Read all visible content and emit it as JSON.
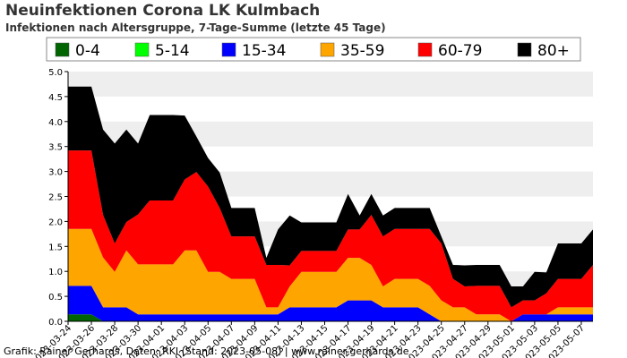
{
  "chart_data": {
    "type": "area",
    "stacked": true,
    "title": "Neuinfektionen Corona LK Kulmbach",
    "subtitle": "Infektionen nach Altersgruppe, 7-Tage-Summe (letzte 45 Tage)",
    "xlabel": "",
    "ylabel": "",
    "ylim": [
      0,
      5
    ],
    "yticks": [
      "0.0",
      "0.5",
      "1.0",
      "1.5",
      "2.0",
      "2.5",
      "3.0",
      "3.5",
      "4.0",
      "4.5",
      "5.0"
    ],
    "legend_position": "top",
    "grid": "horizontal bands",
    "x": [
      "2023-03-24",
      "2023-03-25",
      "2023-03-26",
      "2023-03-27",
      "2023-03-28",
      "2023-03-29",
      "2023-03-30",
      "2023-03-31",
      "2023-04-01",
      "2023-04-02",
      "2023-04-03",
      "2023-04-04",
      "2023-04-05",
      "2023-04-06",
      "2023-04-07",
      "2023-04-08",
      "2023-04-09",
      "2023-04-10",
      "2023-04-11",
      "2023-04-12",
      "2023-04-13",
      "2023-04-14",
      "2023-04-15",
      "2023-04-16",
      "2023-04-17",
      "2023-04-18",
      "2023-04-19",
      "2023-04-20",
      "2023-04-21",
      "2023-04-22",
      "2023-04-23",
      "2023-04-24",
      "2023-04-25",
      "2023-04-26",
      "2023-04-27",
      "2023-04-28",
      "2023-04-29",
      "2023-04-30",
      "2023-05-01",
      "2023-05-02",
      "2023-05-03",
      "2023-05-04",
      "2023-05-05",
      "2023-05-06",
      "2023-05-07",
      "2023-05-08"
    ],
    "xtick_labels": [
      "2023-03-24",
      "2023-03-26",
      "2023-03-28",
      "2023-03-30",
      "2023-04-01",
      "2023-04-03",
      "2023-04-05",
      "2023-04-07",
      "2023-04-09",
      "2023-04-11",
      "2023-04-13",
      "2023-04-15",
      "2023-04-17",
      "2023-04-19",
      "2023-04-21",
      "2023-04-23",
      "2023-04-25",
      "2023-04-27",
      "2023-04-29",
      "2023-05-01",
      "2023-05-03",
      "2023-05-05",
      "2023-05-07"
    ],
    "series": [
      {
        "name": "0-4",
        "color": "#006400",
        "values": [
          0.14,
          0.14,
          0.14,
          0,
          0,
          0,
          0,
          0,
          0,
          0,
          0,
          0,
          0,
          0,
          0,
          0,
          0,
          0,
          0,
          0,
          0,
          0,
          0,
          0,
          0,
          0,
          0,
          0,
          0,
          0,
          0,
          0,
          0,
          0,
          0,
          0,
          0,
          0,
          0,
          0,
          0,
          0,
          0,
          0,
          0,
          0
        ]
      },
      {
        "name": "5-14",
        "color": "#00ff00",
        "values": [
          0,
          0,
          0,
          0,
          0,
          0,
          0,
          0,
          0,
          0,
          0,
          0,
          0,
          0,
          0,
          0,
          0,
          0,
          0,
          0,
          0,
          0,
          0,
          0,
          0,
          0,
          0,
          0,
          0,
          0,
          0,
          0,
          0,
          0,
          0,
          0,
          0,
          0,
          0,
          0,
          0,
          0,
          0,
          0,
          0,
          0
        ]
      },
      {
        "name": "15-34",
        "color": "#0000ff",
        "values": [
          0.57,
          0.57,
          0.57,
          0.28,
          0.28,
          0.28,
          0.14,
          0.14,
          0.14,
          0.14,
          0.14,
          0.14,
          0.14,
          0.14,
          0.14,
          0.14,
          0.14,
          0.14,
          0.14,
          0.28,
          0.28,
          0.28,
          0.28,
          0.28,
          0.42,
          0.42,
          0.42,
          0.28,
          0.28,
          0.28,
          0.28,
          0.14,
          0,
          0,
          0,
          0,
          0,
          0,
          0,
          0.14,
          0.14,
          0.14,
          0.14,
          0.14,
          0.14,
          0.14
        ]
      },
      {
        "name": "35-59",
        "color": "#ffa500",
        "values": [
          1.14,
          1.14,
          1.14,
          1.0,
          0.71,
          1.14,
          1.0,
          1.0,
          1.0,
          1.0,
          1.28,
          1.28,
          0.85,
          0.85,
          0.71,
          0.71,
          0.71,
          0.14,
          0.14,
          0.42,
          0.71,
          0.71,
          0.71,
          0.71,
          0.85,
          0.85,
          0.71,
          0.42,
          0.57,
          0.57,
          0.57,
          0.57,
          0.42,
          0.28,
          0.28,
          0.14,
          0.14,
          0.14,
          0,
          0,
          0,
          0,
          0.14,
          0.14,
          0.14,
          0.14
        ]
      },
      {
        "name": "60-79",
        "color": "#ff0000",
        "values": [
          1.57,
          1.57,
          1.57,
          0.85,
          0.57,
          0.57,
          1.0,
          1.28,
          1.28,
          1.28,
          1.42,
          1.57,
          1.71,
          1.28,
          0.85,
          0.85,
          0.85,
          0.85,
          0.85,
          0.42,
          0.42,
          0.42,
          0.42,
          0.42,
          0.57,
          0.57,
          1.0,
          1.0,
          1.0,
          1.0,
          1.0,
          1.14,
          1.14,
          0.57,
          0.42,
          0.57,
          0.57,
          0.57,
          0.28,
          0.28,
          0.28,
          0.42,
          0.57,
          0.57,
          0.57,
          0.85
        ]
      },
      {
        "name": "80+",
        "color": "#000000",
        "values": [
          1.28,
          1.28,
          1.28,
          1.71,
          2.0,
          1.85,
          1.42,
          1.71,
          1.71,
          1.71,
          1.28,
          0.71,
          0.57,
          0.71,
          0.57,
          0.57,
          0.57,
          0.14,
          0.71,
          1.0,
          0.57,
          0.57,
          0.57,
          0.57,
          0.71,
          0.28,
          0.42,
          0.42,
          0.42,
          0.42,
          0.42,
          0.42,
          0.14,
          0.28,
          0.42,
          0.42,
          0.42,
          0.42,
          0.42,
          0.28,
          0.57,
          0.42,
          0.71,
          0.71,
          0.71,
          0.71
        ]
      }
    ]
  },
  "footer": {
    "credit": "Grafik: Rainer Gerhards, Daten: RKI (Stand: 2023-05-08) | www.rainer-gerhards.de"
  }
}
